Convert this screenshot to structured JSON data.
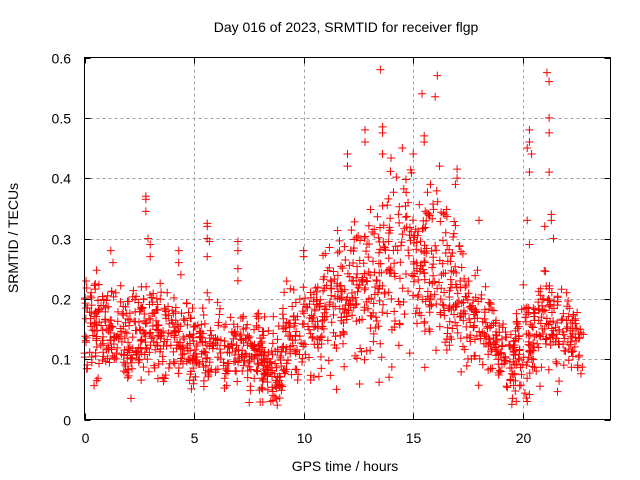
{
  "chart_data": {
    "type": "scatter",
    "title": "Day 016 of 2023, SRMTID for receiver flgp",
    "xlabel": "GPS time / hours",
    "ylabel": "SRMTID / TECUs",
    "xlim": [
      0,
      24
    ],
    "ylim": [
      0,
      0.6
    ],
    "x_ticks": [
      0,
      5,
      10,
      15,
      20
    ],
    "x_tick_labels": [
      "0",
      "5",
      "10",
      "15",
      "20"
    ],
    "y_ticks": [
      0,
      0.1,
      0.2,
      0.3,
      0.4,
      0.5,
      0.6
    ],
    "y_tick_labels": [
      "0",
      "0.1",
      "0.2",
      "0.3",
      "0.4",
      "0.5",
      "0.6"
    ],
    "grid": true,
    "legend": "none",
    "marker": "+",
    "color": "#ff0000",
    "series": [
      {
        "name": "SRMTID",
        "envelope_note": "approximate per-hour distribution (median and spread) of the dense point cloud",
        "x_range": [
          0,
          22.8
        ],
        "profile": [
          {
            "x": 0.0,
            "median": 0.16,
            "spread": 0.05
          },
          {
            "x": 1.0,
            "median": 0.14,
            "spread": 0.05
          },
          {
            "x": 2.0,
            "median": 0.13,
            "spread": 0.05
          },
          {
            "x": 3.0,
            "median": 0.15,
            "spread": 0.05
          },
          {
            "x": 4.0,
            "median": 0.13,
            "spread": 0.04
          },
          {
            "x": 5.0,
            "median": 0.12,
            "spread": 0.04
          },
          {
            "x": 6.0,
            "median": 0.12,
            "spread": 0.04
          },
          {
            "x": 7.0,
            "median": 0.12,
            "spread": 0.04
          },
          {
            "x": 8.0,
            "median": 0.11,
            "spread": 0.04
          },
          {
            "x": 8.7,
            "median": 0.09,
            "spread": 0.04
          },
          {
            "x": 9.5,
            "median": 0.14,
            "spread": 0.05
          },
          {
            "x": 10.5,
            "median": 0.16,
            "spread": 0.05
          },
          {
            "x": 11.5,
            "median": 0.19,
            "spread": 0.06
          },
          {
            "x": 12.5,
            "median": 0.22,
            "spread": 0.08
          },
          {
            "x": 13.5,
            "median": 0.25,
            "spread": 0.09
          },
          {
            "x": 14.5,
            "median": 0.27,
            "spread": 0.09
          },
          {
            "x": 15.5,
            "median": 0.26,
            "spread": 0.09
          },
          {
            "x": 16.5,
            "median": 0.24,
            "spread": 0.08
          },
          {
            "x": 17.5,
            "median": 0.18,
            "spread": 0.06
          },
          {
            "x": 18.5,
            "median": 0.14,
            "spread": 0.04
          },
          {
            "x": 19.5,
            "median": 0.1,
            "spread": 0.04
          },
          {
            "x": 20.0,
            "median": 0.12,
            "spread": 0.05
          },
          {
            "x": 21.0,
            "median": 0.17,
            "spread": 0.06
          },
          {
            "x": 22.0,
            "median": 0.14,
            "spread": 0.04
          },
          {
            "x": 22.8,
            "median": 0.13,
            "spread": 0.03
          }
        ],
        "notable_points": [
          {
            "x": 0.0,
            "y": 0.11
          },
          {
            "x": 0.3,
            "y": 0.21
          },
          {
            "x": 1.2,
            "y": 0.28
          },
          {
            "x": 1.3,
            "y": 0.26
          },
          {
            "x": 2.8,
            "y": 0.37
          },
          {
            "x": 2.8,
            "y": 0.365
          },
          {
            "x": 2.8,
            "y": 0.345
          },
          {
            "x": 2.9,
            "y": 0.3
          },
          {
            "x": 3.0,
            "y": 0.29
          },
          {
            "x": 3.0,
            "y": 0.27
          },
          {
            "x": 4.3,
            "y": 0.28
          },
          {
            "x": 4.3,
            "y": 0.26
          },
          {
            "x": 4.4,
            "y": 0.24
          },
          {
            "x": 5.6,
            "y": 0.325
          },
          {
            "x": 5.6,
            "y": 0.32
          },
          {
            "x": 5.6,
            "y": 0.3
          },
          {
            "x": 5.7,
            "y": 0.295
          },
          {
            "x": 5.6,
            "y": 0.27
          },
          {
            "x": 5.6,
            "y": 0.21
          },
          {
            "x": 7.0,
            "y": 0.295
          },
          {
            "x": 7.0,
            "y": 0.28
          },
          {
            "x": 7.0,
            "y": 0.25
          },
          {
            "x": 7.0,
            "y": 0.23
          },
          {
            "x": 8.5,
            "y": 0.03
          },
          {
            "x": 8.6,
            "y": 0.04
          },
          {
            "x": 10.0,
            "y": 0.28
          },
          {
            "x": 10.0,
            "y": 0.27
          },
          {
            "x": 11.5,
            "y": 0.05
          },
          {
            "x": 12.0,
            "y": 0.44
          },
          {
            "x": 12.0,
            "y": 0.42
          },
          {
            "x": 12.8,
            "y": 0.48
          },
          {
            "x": 12.8,
            "y": 0.46
          },
          {
            "x": 13.5,
            "y": 0.58
          },
          {
            "x": 13.6,
            "y": 0.485
          },
          {
            "x": 13.6,
            "y": 0.475
          },
          {
            "x": 13.6,
            "y": 0.44
          },
          {
            "x": 13.9,
            "y": 0.07
          },
          {
            "x": 14.5,
            "y": 0.45
          },
          {
            "x": 15.0,
            "y": 0.44
          },
          {
            "x": 15.4,
            "y": 0.54
          },
          {
            "x": 15.5,
            "y": 0.47
          },
          {
            "x": 15.5,
            "y": 0.46
          },
          {
            "x": 16.1,
            "y": 0.57
          },
          {
            "x": 16.0,
            "y": 0.535
          },
          {
            "x": 16.2,
            "y": 0.42
          },
          {
            "x": 17.0,
            "y": 0.415
          },
          {
            "x": 17.0,
            "y": 0.4
          },
          {
            "x": 18.0,
            "y": 0.33
          },
          {
            "x": 18.3,
            "y": 0.22
          },
          {
            "x": 19.5,
            "y": 0.025
          },
          {
            "x": 19.7,
            "y": 0.03
          },
          {
            "x": 20.3,
            "y": 0.48
          },
          {
            "x": 20.3,
            "y": 0.46
          },
          {
            "x": 20.2,
            "y": 0.45
          },
          {
            "x": 20.4,
            "y": 0.44
          },
          {
            "x": 20.3,
            "y": 0.41
          },
          {
            "x": 20.2,
            "y": 0.33
          },
          {
            "x": 20.3,
            "y": 0.29
          },
          {
            "x": 21.1,
            "y": 0.575
          },
          {
            "x": 21.2,
            "y": 0.56
          },
          {
            "x": 21.2,
            "y": 0.5
          },
          {
            "x": 21.2,
            "y": 0.475
          },
          {
            "x": 21.2,
            "y": 0.41
          },
          {
            "x": 21.3,
            "y": 0.34
          },
          {
            "x": 21.3,
            "y": 0.33
          },
          {
            "x": 21.0,
            "y": 0.32
          },
          {
            "x": 21.4,
            "y": 0.3
          },
          {
            "x": 22.0,
            "y": 0.21
          },
          {
            "x": 22.5,
            "y": 0.09
          }
        ]
      }
    ]
  }
}
